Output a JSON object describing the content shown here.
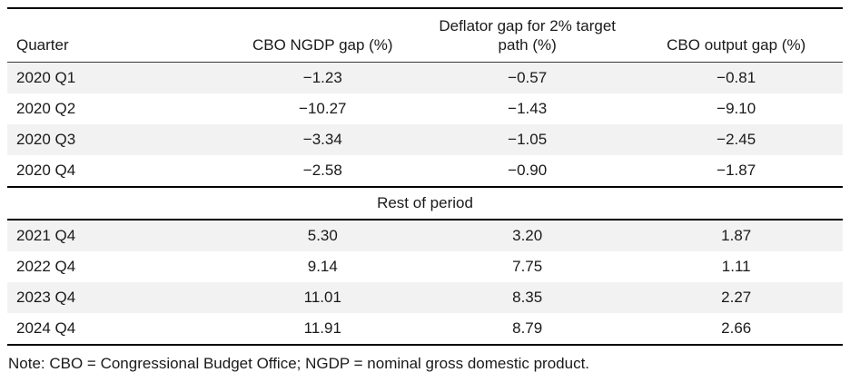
{
  "table": {
    "headers": [
      {
        "label": "Quarter"
      },
      {
        "label": "CBO NGDP gap (%)"
      },
      {
        "line1": "Deflator gap for 2% target",
        "line2": "path (%)"
      },
      {
        "label": "CBO output gap (%)"
      }
    ],
    "divider_label": "Rest of period",
    "rows": [
      {
        "cells": [
          "2020 Q1",
          "−1.23",
          "−0.57",
          "−0.81"
        ]
      },
      {
        "cells": [
          "2020 Q2",
          "−10.27",
          "−1.43",
          "−9.10"
        ]
      },
      {
        "cells": [
          "2020 Q3",
          "−3.34",
          "−1.05",
          "−2.45"
        ]
      },
      {
        "cells": [
          "2020 Q4",
          "−2.58",
          "−0.90",
          "−1.87"
        ]
      },
      {
        "cells": [
          "2021 Q4",
          "5.30",
          "3.20",
          "1.87"
        ]
      },
      {
        "cells": [
          "2022 Q4",
          "9.14",
          "7.75",
          "1.11"
        ]
      },
      {
        "cells": [
          "2023 Q4",
          "11.01",
          "8.35",
          "2.27"
        ]
      },
      {
        "cells": [
          "2024 Q4",
          "11.91",
          "8.79",
          "2.66"
        ]
      }
    ]
  },
  "note": "Note: CBO = Congressional Budget Office; NGDP = nominal gross domestic product.",
  "colors": {
    "row_shading": "#f2f2f2",
    "table_border": "#000000",
    "text": "#1a1a1a"
  }
}
